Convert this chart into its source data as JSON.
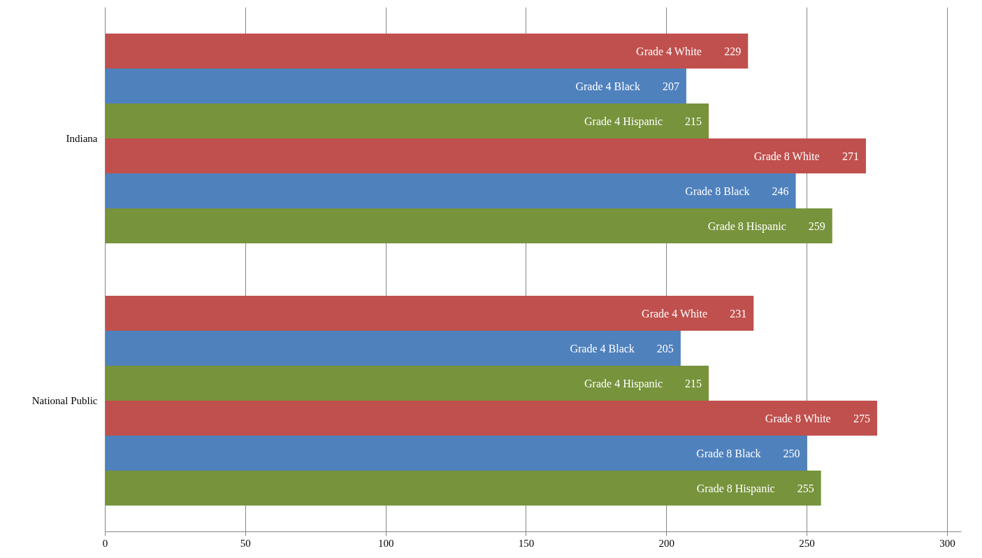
{
  "chart_data": {
    "type": "bar",
    "orientation": "horizontal",
    "categories": [
      "Indiana",
      "National Public"
    ],
    "series": [
      {
        "name": "Grade 4 White",
        "color": "#c0504d",
        "values": [
          229,
          231
        ]
      },
      {
        "name": "Grade 4 Black",
        "color": "#4f81bd",
        "values": [
          207,
          205
        ]
      },
      {
        "name": "Grade 4 Hispanic",
        "color": "#77933c",
        "values": [
          215,
          215
        ]
      },
      {
        "name": "Grade 8 White",
        "color": "#c0504d",
        "values": [
          271,
          275
        ]
      },
      {
        "name": "Grade 8 Black",
        "color": "#4f81bd",
        "values": [
          246,
          250
        ]
      },
      {
        "name": "Grade 8 Hispanic",
        "color": "#77933c",
        "values": [
          259,
          255
        ]
      }
    ],
    "xlim": [
      0,
      305
    ],
    "xticks": [
      0,
      50,
      100,
      150,
      200,
      250,
      300
    ],
    "grid": "x",
    "data_labels": true,
    "legend": false
  }
}
